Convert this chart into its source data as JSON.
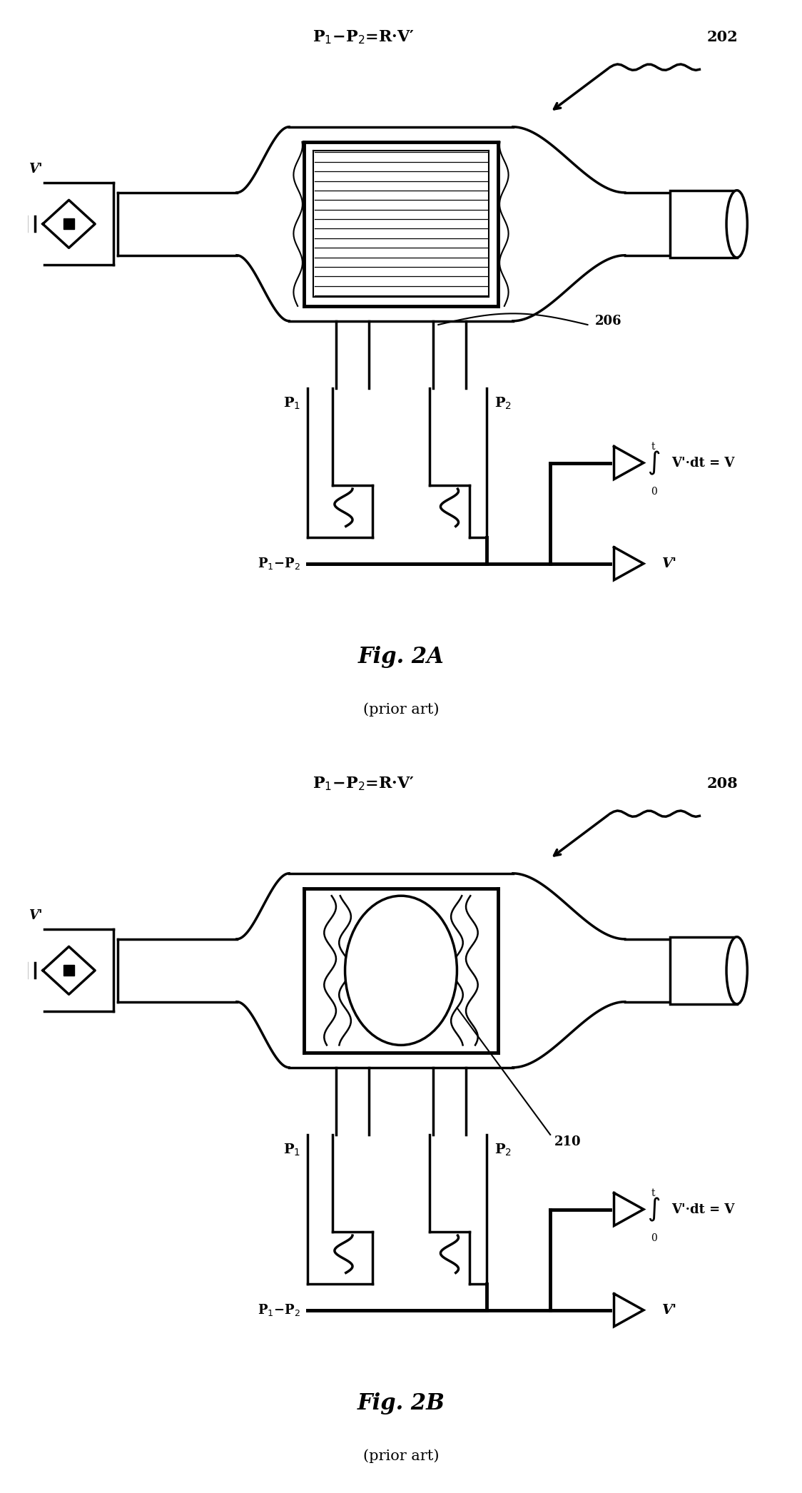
{
  "bg_color": "#ffffff",
  "line_color": "#000000",
  "fig_width": 11.24,
  "fig_height": 20.92,
  "fig2a": {
    "label": "202",
    "sub_label": "206",
    "title_eq": "P$_1$−P$_2$=R·V′",
    "p1_label": "P$_1$",
    "p2_label": "P$_2$",
    "bottom_eq": "P$_1$−P$_2$",
    "vp_label": "V′",
    "fig_label": "Fig. 2A",
    "prior_art": "(prior art)"
  },
  "fig2b": {
    "label": "208",
    "sub_label": "210",
    "title_eq": "P$_1$−P$_2$=R·V′",
    "p1_label": "P$_1$",
    "p2_label": "P$_2$",
    "bottom_eq": "P$_1$−P$_2$",
    "vp_label": "V′",
    "fig_label": "Fig. 2B",
    "prior_art": "(prior art)"
  }
}
